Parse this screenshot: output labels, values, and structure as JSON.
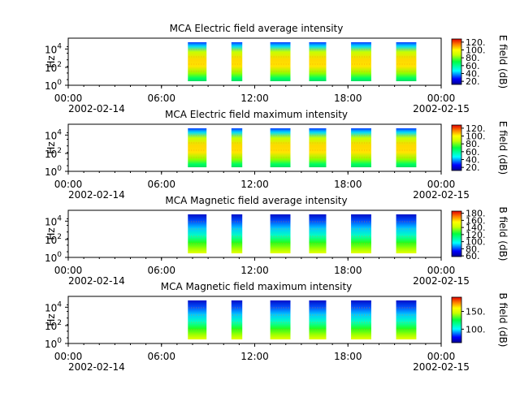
{
  "chart_data": [
    {
      "type": "heatmap",
      "title": "MCA  Electric field average intensity",
      "ylabel": "Hz",
      "y_scale": "log",
      "y_ticks": [
        {
          "base": "10",
          "exp": "0"
        },
        {
          "base": "10",
          "exp": "2"
        },
        {
          "base": "10",
          "exp": "4"
        }
      ],
      "x_ticks": [
        "00:00",
        "06:00",
        "12:00",
        "18:00",
        "00:00"
      ],
      "x_dates": [
        "2002-02-14",
        "2002-02-15"
      ],
      "x_range_hours": [
        0,
        24
      ],
      "colorbar": {
        "label": "E field (dB)",
        "ticks": [
          "20.",
          "40.",
          "60.",
          "80.",
          "100.",
          "120."
        ],
        "range": [
          12,
          128
        ],
        "profile": "efield"
      },
      "segments_hours": [
        [
          7.7,
          8.9
        ],
        [
          10.5,
          11.2
        ],
        [
          13.0,
          14.3
        ],
        [
          15.5,
          16.6
        ],
        [
          18.2,
          19.5
        ],
        [
          21.1,
          22.4
        ]
      ]
    },
    {
      "type": "heatmap",
      "title": "MCA  Electric field maximum intensity",
      "ylabel": "Hz",
      "y_scale": "log",
      "y_ticks": [
        {
          "base": "10",
          "exp": "0"
        },
        {
          "base": "10",
          "exp": "2"
        },
        {
          "base": "10",
          "exp": "4"
        }
      ],
      "x_ticks": [
        "00:00",
        "06:00",
        "12:00",
        "18:00",
        "00:00"
      ],
      "x_dates": [
        "2002-02-14",
        "2002-02-15"
      ],
      "x_range_hours": [
        0,
        24
      ],
      "colorbar": {
        "label": "E field (dB)",
        "ticks": [
          "20.",
          "40.",
          "60.",
          "80.",
          "100.",
          "120."
        ],
        "range": [
          12,
          128
        ],
        "profile": "efield"
      },
      "segments_hours": [
        [
          7.7,
          8.9
        ],
        [
          10.5,
          11.2
        ],
        [
          13.0,
          14.3
        ],
        [
          15.5,
          16.6
        ],
        [
          18.2,
          19.5
        ],
        [
          21.1,
          22.4
        ]
      ]
    },
    {
      "type": "heatmap",
      "title": "MCA  Magnetic field average intensity",
      "ylabel": "Hz",
      "y_scale": "log",
      "y_ticks": [
        {
          "base": "10",
          "exp": "0"
        },
        {
          "base": "10",
          "exp": "2"
        },
        {
          "base": "10",
          "exp": "4"
        }
      ],
      "x_ticks": [
        "00:00",
        "06:00",
        "12:00",
        "18:00",
        "00:00"
      ],
      "x_dates": [
        "2002-02-14",
        "2002-02-15"
      ],
      "x_range_hours": [
        0,
        24
      ],
      "colorbar": {
        "label": "B field (dB)",
        "ticks": [
          "60.",
          "80.",
          "100.",
          "120.",
          "140.",
          "160.",
          "180."
        ],
        "range": [
          58,
          186
        ],
        "profile": "bfield"
      },
      "segments_hours": [
        [
          7.7,
          8.9
        ],
        [
          10.5,
          11.2
        ],
        [
          13.0,
          14.3
        ],
        [
          15.5,
          16.6
        ],
        [
          18.2,
          19.5
        ],
        [
          21.1,
          22.4
        ]
      ]
    },
    {
      "type": "heatmap",
      "title": "MCA  Magnetic field maximum intensity",
      "ylabel": "Hz",
      "y_scale": "log",
      "y_ticks": [
        {
          "base": "10",
          "exp": "0"
        },
        {
          "base": "10",
          "exp": "2"
        },
        {
          "base": "10",
          "exp": "4"
        }
      ],
      "x_ticks": [
        "00:00",
        "06:00",
        "12:00",
        "18:00",
        "00:00"
      ],
      "x_dates": [
        "2002-02-14",
        "2002-02-15"
      ],
      "x_range_hours": [
        0,
        24
      ],
      "colorbar": {
        "label": "B field (dB)",
        "ticks": [
          "100.",
          "150."
        ],
        "range": [
          62,
          190
        ],
        "profile": "bfield"
      },
      "segments_hours": [
        [
          7.7,
          8.9
        ],
        [
          10.5,
          11.2
        ],
        [
          13.0,
          14.3
        ],
        [
          15.5,
          16.6
        ],
        [
          18.2,
          19.5
        ],
        [
          21.1,
          22.4
        ]
      ]
    }
  ]
}
